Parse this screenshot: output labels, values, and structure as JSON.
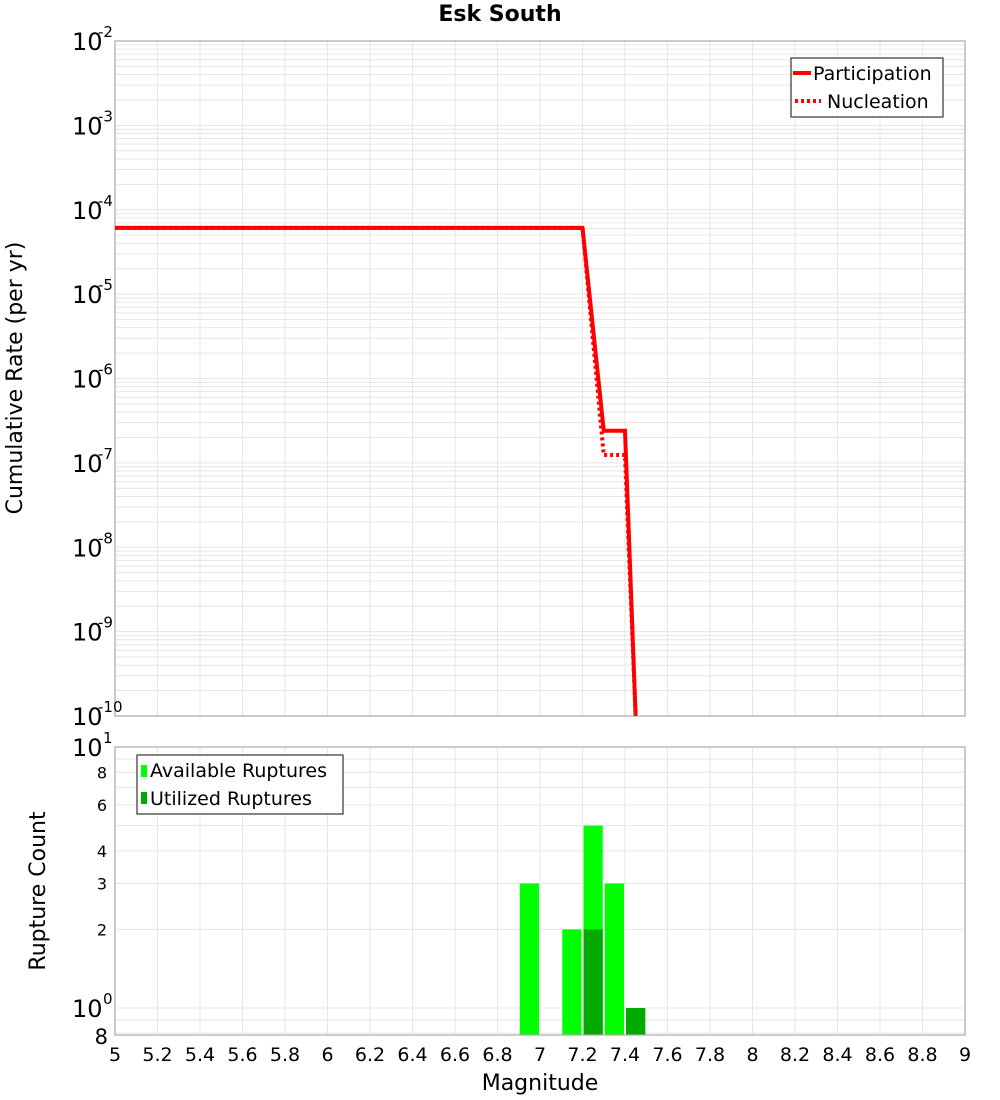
{
  "chart_data": [
    {
      "type": "line",
      "title": "Esk South",
      "xlabel": "Magnitude",
      "ylabel": "Cumulative Rate (per yr)",
      "yscale": "log",
      "xlim": [
        5,
        9
      ],
      "ylim": [
        1e-10,
        0.01
      ],
      "grid": true,
      "legend_position": "upper right",
      "yticks": [
        "10^-2",
        "10^-3",
        "10^-4",
        "10^-5",
        "10^-6",
        "10^-7",
        "10^-8",
        "10^-9",
        "10^-10"
      ],
      "series": [
        {
          "name": "Participation",
          "style": "solid",
          "color": "#ff0000",
          "x": [
            5.0,
            7.2,
            7.3,
            7.4,
            7.45
          ],
          "y": [
            6.1e-05,
            6.1e-05,
            2.4e-07,
            2.4e-07,
            1e-10
          ]
        },
        {
          "name": "Nucleation",
          "style": "dotted",
          "color": "#ff0000",
          "x": [
            5.0,
            7.2,
            7.3,
            7.4,
            7.45
          ],
          "y": [
            6.1e-05,
            6.1e-05,
            1.24e-07,
            1.24e-07,
            1e-10
          ]
        }
      ]
    },
    {
      "type": "bar",
      "xlabel": "Magnitude",
      "ylabel": "Rupture Count",
      "yscale": "log",
      "xlim": [
        5,
        9
      ],
      "ylim": [
        0.8,
        10
      ],
      "grid": true,
      "legend_position": "upper left",
      "xticks": [
        "5",
        "5.2",
        "5.4",
        "5.6",
        "5.8",
        "6",
        "6.2",
        "6.4",
        "6.6",
        "6.8",
        "7",
        "7.2",
        "7.4",
        "7.6",
        "7.8",
        "8",
        "8.2",
        "8.4",
        "8.6",
        "8.8",
        "9"
      ],
      "yticks": [
        "8",
        "10^0",
        "2",
        "3",
        "4",
        "6",
        "8",
        "10^1"
      ],
      "bar_width": 0.1,
      "series": [
        {
          "name": "Available Ruptures",
          "color": "#00ff00",
          "x": [
            6.95,
            7.15,
            7.25,
            7.35,
            7.45
          ],
          "values": [
            3,
            2,
            5,
            3,
            1
          ]
        },
        {
          "name": "Utilized Ruptures",
          "color": "#00aa00",
          "x": [
            7.25,
            7.45
          ],
          "values": [
            2,
            1
          ]
        }
      ]
    }
  ],
  "header": {
    "title": "Esk South"
  },
  "top_plot": {
    "ylabel": "Cumulative Rate (per yr)",
    "legend": {
      "participation": "Participation",
      "nucleation": "Nucleation"
    },
    "ytick_base": "10",
    "ytick_exps": [
      "-2",
      "-3",
      "-4",
      "-5",
      "-6",
      "-7",
      "-8",
      "-9",
      "-10"
    ]
  },
  "bottom_plot": {
    "ylabel": "Rupture Count",
    "xlabel": "Magnitude",
    "legend": {
      "available": "Available Ruptures",
      "utilized": "Utilized Ruptures"
    },
    "ytick_minor": [
      "8",
      "6",
      "4",
      "3",
      "2",
      "8"
    ],
    "ytick_major_base": "10",
    "ytick_major_exps": [
      "1",
      "0"
    ],
    "xticks": [
      "5",
      "5.2",
      "5.4",
      "5.6",
      "5.8",
      "6",
      "6.2",
      "6.4",
      "6.6",
      "6.8",
      "7",
      "7.2",
      "7.4",
      "7.6",
      "7.8",
      "8",
      "8.2",
      "8.4",
      "8.6",
      "8.8",
      "9"
    ]
  }
}
